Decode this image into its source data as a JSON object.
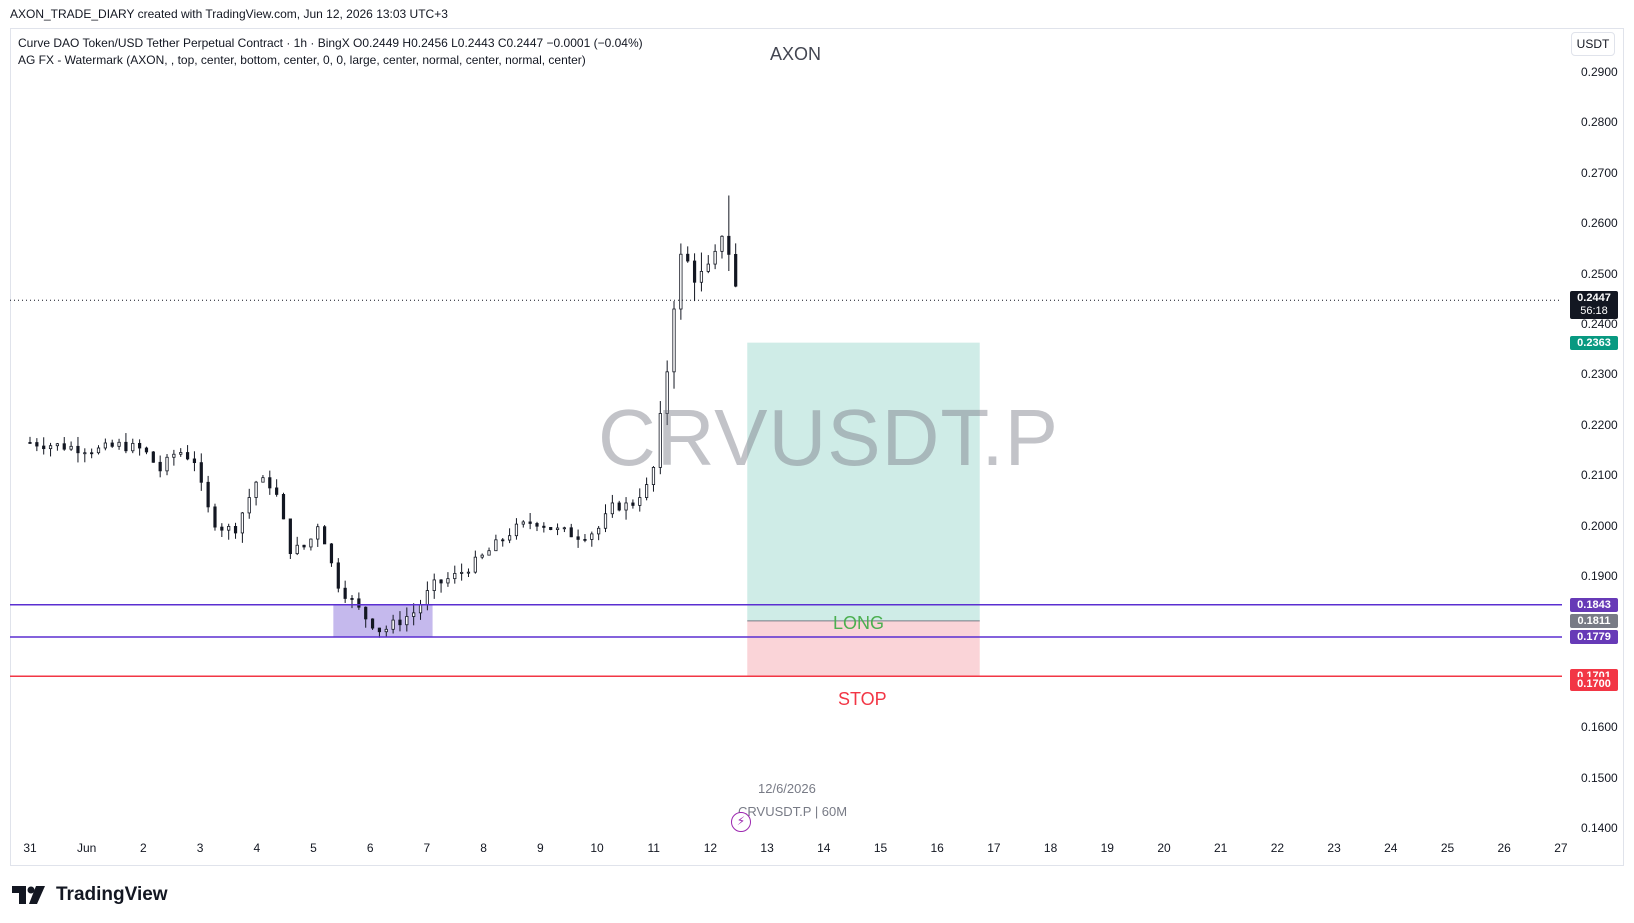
{
  "header": {
    "attribution": "AXON_TRADE_DIARY created with TradingView.com, Jun 12, 2026 13:03 UTC+3"
  },
  "legend": {
    "line1": "Curve DAO Token/USD Tether Perpetual Contract · 1h · BingX  O0.2449  H0.2456  L0.2443  C0.2447  −0.0001 (−0.04%)",
    "line2": "AG FX - Watermark (AXON, , top, center, bottom, center, 0, 0, large, center, normal, center, normal, center)"
  },
  "watermark": {
    "top_text": "AXON",
    "symbol_big": "CRVUSDT.P",
    "date": "12/6/2026",
    "symbol_small": "CRVUSDT.P | 60M"
  },
  "currency": "USDT",
  "brand": "TradingView",
  "price_ticks": [
    "0.2900",
    "0.2800",
    "0.2700",
    "0.2600",
    "0.2500",
    "0.2400",
    "0.2300",
    "0.2200",
    "0.2100",
    "0.2000",
    "0.1900",
    "0.1600",
    "0.1500",
    "0.1400"
  ],
  "date_ticks": [
    "31",
    "Jun",
    "2",
    "3",
    "4",
    "5",
    "6",
    "7",
    "8",
    "9",
    "10",
    "11",
    "12",
    "13",
    "14",
    "15",
    "16",
    "17",
    "18",
    "19",
    "20",
    "21",
    "22",
    "23",
    "24",
    "25",
    "26",
    "27"
  ],
  "tags": {
    "last_price": "0.2447",
    "countdown": "56:18",
    "target": "0.2363",
    "upper_line": "0.1843",
    "entry": "0.1811",
    "lower_line": "0.1779",
    "stop_line": "0.1701",
    "stop": "0.1700"
  },
  "position_labels": {
    "long": "LONG",
    "stop": "STOP"
  },
  "colors": {
    "profit_zone": "#cfece7",
    "loss_zone": "#fad4d8",
    "support_lines": "#5b2fd1",
    "stop_line": "#f23645",
    "box_fill": "#b7a7e8",
    "target_tag": "#089981",
    "entry_tag": "#787b86",
    "purple_tag": "#673ab7"
  },
  "chart_data": {
    "type": "candlestick",
    "symbol": "CRVUSDT.P",
    "interval": "1h",
    "exchange": "BingX",
    "x_unit": "days (day index from May 31, 2026)",
    "ylim": [
      0.14,
      0.295
    ],
    "last_close": 0.2447,
    "ohlc_last": {
      "open": 0.2449,
      "high": 0.2456,
      "low": 0.2443,
      "close": 0.2447
    },
    "close_path": [
      [
        0.0,
        0.2165
      ],
      [
        0.4,
        0.216
      ],
      [
        0.8,
        0.2155
      ],
      [
        1.2,
        0.215
      ],
      [
        1.6,
        0.216
      ],
      [
        2.0,
        0.215
      ],
      [
        2.3,
        0.211
      ],
      [
        2.6,
        0.215
      ],
      [
        2.9,
        0.213
      ],
      [
        3.1,
        0.204
      ],
      [
        3.3,
        0.2
      ],
      [
        3.6,
        0.199
      ],
      [
        3.8,
        0.204
      ],
      [
        4.0,
        0.209
      ],
      [
        4.3,
        0.208
      ],
      [
        4.6,
        0.195
      ],
      [
        4.9,
        0.196
      ],
      [
        5.1,
        0.201
      ],
      [
        5.4,
        0.189
      ],
      [
        5.6,
        0.186
      ],
      [
        5.9,
        0.182
      ],
      [
        6.2,
        0.179
      ],
      [
        6.5,
        0.181
      ],
      [
        6.8,
        0.183
      ],
      [
        7.1,
        0.188
      ],
      [
        7.5,
        0.19
      ],
      [
        7.9,
        0.193
      ],
      [
        8.2,
        0.196
      ],
      [
        8.5,
        0.199
      ],
      [
        8.9,
        0.201
      ],
      [
        9.3,
        0.199
      ],
      [
        9.7,
        0.198
      ],
      [
        10.0,
        0.199
      ],
      [
        10.3,
        0.204
      ],
      [
        10.6,
        0.204
      ],
      [
        10.8,
        0.207
      ],
      [
        10.95,
        0.208
      ],
      [
        11.1,
        0.219
      ],
      [
        11.2,
        0.226
      ],
      [
        11.3,
        0.24
      ],
      [
        11.4,
        0.248
      ],
      [
        11.5,
        0.254
      ],
      [
        11.7,
        0.25
      ],
      [
        11.9,
        0.249
      ],
      [
        12.1,
        0.253
      ],
      [
        12.25,
        0.261
      ],
      [
        12.4,
        0.248
      ],
      [
        12.55,
        0.2447
      ]
    ],
    "swing_high": 0.2655,
    "swing_low": 0.17,
    "demand_zone": {
      "x_start": 5.35,
      "x_end": 7.1,
      "top": 0.1843,
      "bottom": 0.1779
    },
    "horizontal_lines": [
      {
        "price": 0.1843,
        "color": "#5b2fd1"
      },
      {
        "price": 0.1779,
        "color": "#5b2fd1"
      },
      {
        "price": 0.1701,
        "color": "#f23645"
      }
    ],
    "long_position": {
      "x_start": 12.65,
      "x_end": 16.75,
      "entry": 0.1811,
      "target": 0.2363,
      "stop": 0.17
    }
  }
}
